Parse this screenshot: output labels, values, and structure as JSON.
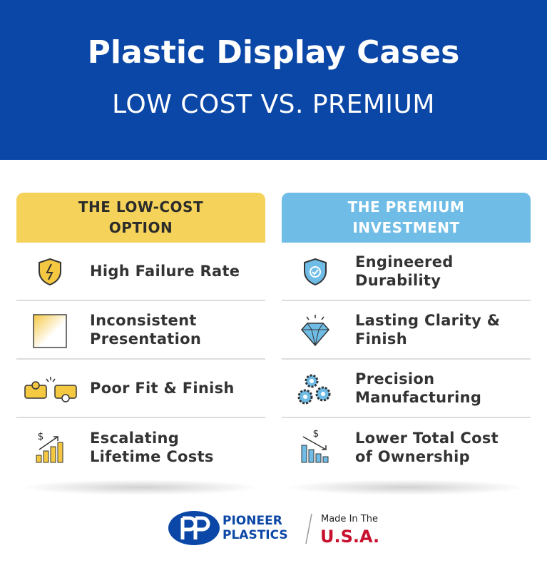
{
  "header": {
    "title": "Plastic Display Cases",
    "subtitle": "LOW COST VS. PREMIUM"
  },
  "columns": [
    {
      "heading": "THE LOW-COST OPTION",
      "items": [
        "High Failure Rate",
        "Inconsistent Presentation",
        "Poor Fit & Finish",
        "Escalating Lifetime Costs"
      ]
    },
    {
      "heading": "THE PREMIUM INVESTMENT",
      "items": [
        "Engineered Durability",
        "Lasting Clarity & Finish",
        "Precision Manufacturing",
        "Lower Total Cost of Ownership"
      ]
    }
  ],
  "footer": {
    "brand_line1": "PIONEER",
    "brand_line2": "PLASTICS",
    "made_in": "Made In The",
    "country": "U.S.A."
  }
}
